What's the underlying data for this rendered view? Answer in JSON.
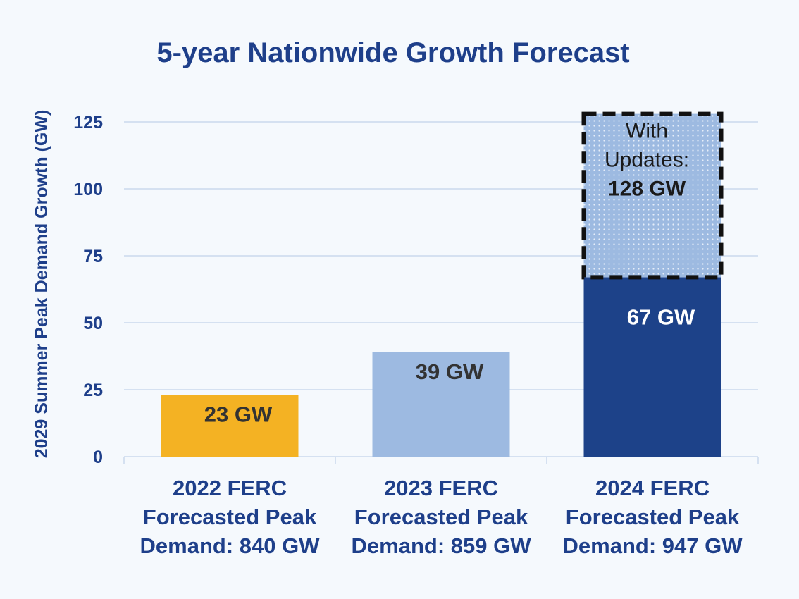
{
  "chart_data": {
    "type": "bar",
    "title": "5-year Nationwide Growth Forecast",
    "ylabel": "2029 Summer Peak Demand Growth (GW)",
    "xlabel": "",
    "ylim": [
      0,
      140
    ],
    "yticks": [
      0,
      25,
      50,
      75,
      100,
      125
    ],
    "grid": true,
    "categories": [
      [
        "2022 FERC",
        "Forecasted Peak",
        "Demand: 840 GW"
      ],
      [
        "2023 FERC",
        "Forecasted Peak",
        "Demand: 859 GW"
      ],
      [
        "2024 FERC",
        "Forecasted Peak",
        "Demand: 947 GW"
      ]
    ],
    "values": [
      23,
      39,
      67
    ],
    "bar_labels": [
      "23 GW",
      "39 GW",
      "67 GW"
    ],
    "bar_colors": [
      "#f4b223",
      "#9dbae1",
      "#1d4289"
    ],
    "label_colors": [
      "#333333",
      "#333333",
      "#ffffff"
    ],
    "update": {
      "bar_index": 2,
      "total": 128,
      "color": "#9dbae1",
      "border": "dashed",
      "text_lines": [
        "With",
        "Updates:"
      ],
      "value_label": "128 GW"
    }
  }
}
